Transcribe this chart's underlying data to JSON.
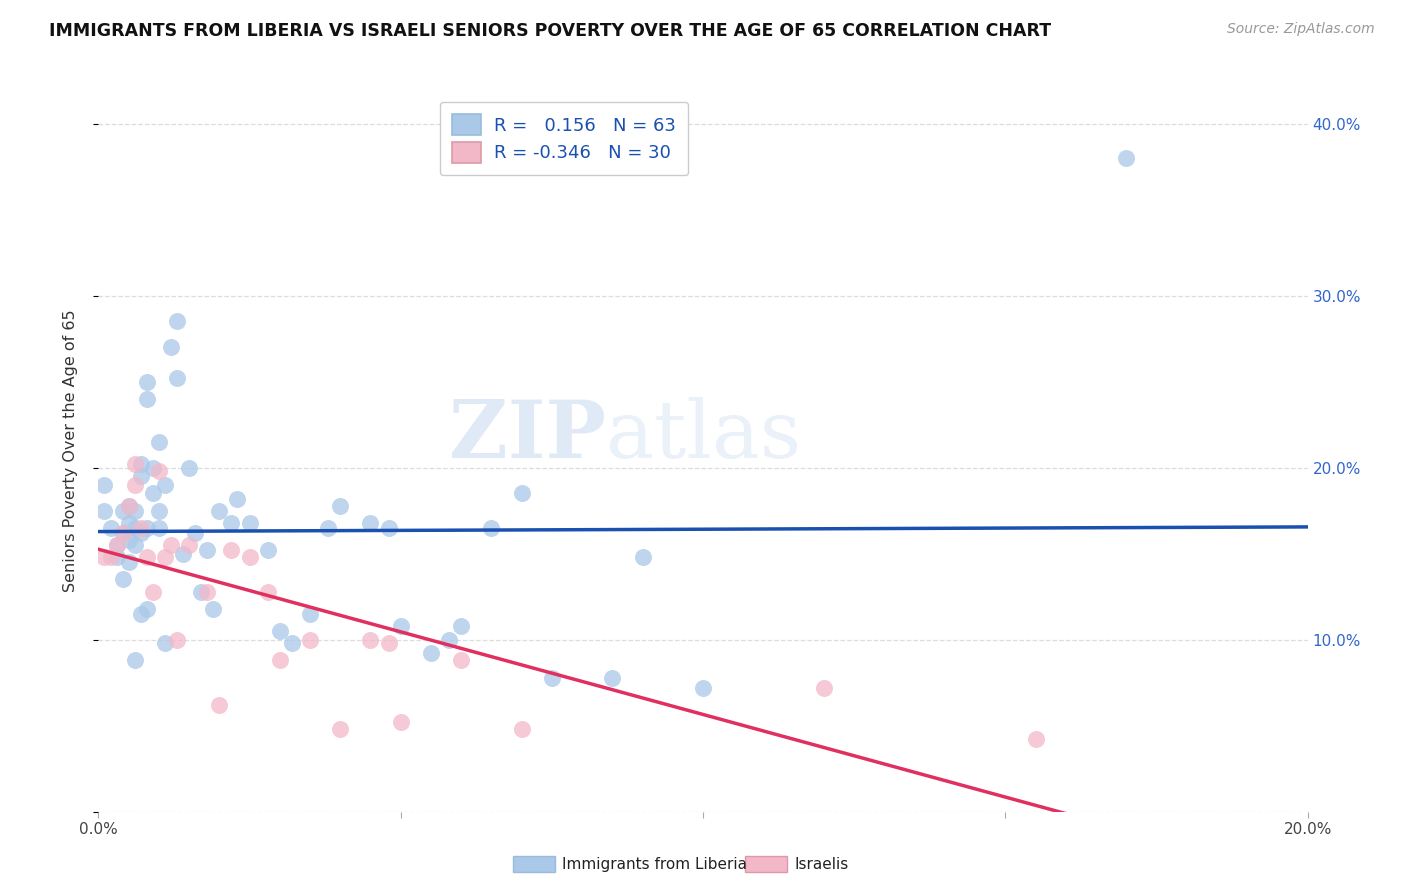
{
  "title": "IMMIGRANTS FROM LIBERIA VS ISRAELI SENIORS POVERTY OVER THE AGE OF 65 CORRELATION CHART",
  "source": "Source: ZipAtlas.com",
  "ylabel": "Seniors Poverty Over the Age of 65",
  "xlim": [
    0.0,
    0.2
  ],
  "ylim": [
    0.0,
    0.42
  ],
  "blue_R": "0.156",
  "blue_N": "63",
  "pink_R": "-0.346",
  "pink_N": "30",
  "blue_color": "#aac8e8",
  "pink_color": "#f2b8c8",
  "line_blue": "#1a50b0",
  "line_pink": "#e03060",
  "legend_label_blue": "Immigrants from Liberia",
  "legend_label_pink": "Israelis",
  "blue_x": [
    0.001,
    0.001,
    0.002,
    0.003,
    0.003,
    0.004,
    0.004,
    0.004,
    0.005,
    0.005,
    0.005,
    0.005,
    0.006,
    0.006,
    0.006,
    0.006,
    0.007,
    0.007,
    0.007,
    0.007,
    0.008,
    0.008,
    0.008,
    0.008,
    0.009,
    0.009,
    0.01,
    0.01,
    0.01,
    0.011,
    0.011,
    0.012,
    0.013,
    0.013,
    0.014,
    0.015,
    0.016,
    0.017,
    0.018,
    0.019,
    0.02,
    0.022,
    0.023,
    0.025,
    0.028,
    0.03,
    0.032,
    0.035,
    0.038,
    0.04,
    0.045,
    0.048,
    0.05,
    0.055,
    0.058,
    0.06,
    0.065,
    0.07,
    0.075,
    0.085,
    0.09,
    0.1,
    0.17
  ],
  "blue_y": [
    0.175,
    0.19,
    0.165,
    0.148,
    0.155,
    0.175,
    0.162,
    0.135,
    0.178,
    0.168,
    0.158,
    0.145,
    0.175,
    0.165,
    0.155,
    0.088,
    0.202,
    0.195,
    0.162,
    0.115,
    0.25,
    0.24,
    0.165,
    0.118,
    0.2,
    0.185,
    0.215,
    0.175,
    0.165,
    0.19,
    0.098,
    0.27,
    0.285,
    0.252,
    0.15,
    0.2,
    0.162,
    0.128,
    0.152,
    0.118,
    0.175,
    0.168,
    0.182,
    0.168,
    0.152,
    0.105,
    0.098,
    0.115,
    0.165,
    0.178,
    0.168,
    0.165,
    0.108,
    0.092,
    0.1,
    0.108,
    0.165,
    0.185,
    0.078,
    0.078,
    0.148,
    0.072,
    0.38
  ],
  "pink_x": [
    0.001,
    0.002,
    0.003,
    0.004,
    0.005,
    0.006,
    0.006,
    0.007,
    0.008,
    0.009,
    0.01,
    0.011,
    0.012,
    0.013,
    0.015,
    0.018,
    0.02,
    0.022,
    0.025,
    0.028,
    0.03,
    0.035,
    0.04,
    0.045,
    0.048,
    0.05,
    0.06,
    0.07,
    0.12,
    0.155
  ],
  "pink_y": [
    0.148,
    0.148,
    0.155,
    0.162,
    0.178,
    0.202,
    0.19,
    0.165,
    0.148,
    0.128,
    0.198,
    0.148,
    0.155,
    0.1,
    0.155,
    0.128,
    0.062,
    0.152,
    0.148,
    0.128,
    0.088,
    0.1,
    0.048,
    0.1,
    0.098,
    0.052,
    0.088,
    0.048,
    0.072,
    0.042
  ],
  "grid_color": "#dddddd",
  "title_fontsize": 12.5,
  "source_fontsize": 10,
  "tick_fontsize": 11,
  "legend_fontsize": 13
}
